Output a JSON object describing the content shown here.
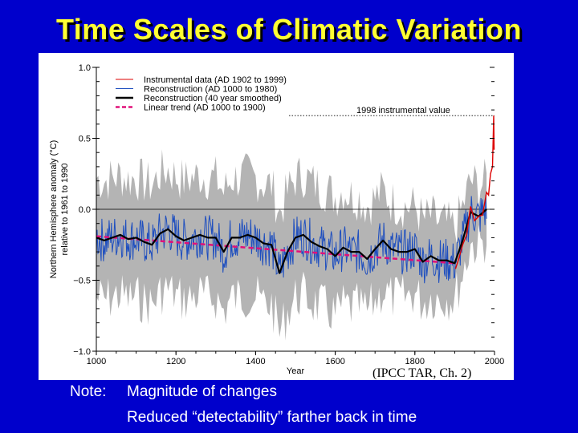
{
  "slide": {
    "title": "Time Scales of Climatic Variation",
    "source": "(IPCC TAR, Ch. 2)",
    "note_label": "Note:",
    "notes": [
      "Magnitude of changes",
      "Reduced “detectability” farther back in time"
    ]
  },
  "colors": {
    "background": "#0000cc",
    "title": "#ffff33",
    "instrumental": "#dd0000",
    "reconstruction": "#1f4fbf",
    "smoothed": "#000000",
    "trend": "#e0107a",
    "uncertainty": "#b4b4b4"
  },
  "chart_data": {
    "type": "line",
    "title": "",
    "xlabel": "Year",
    "ylabel": "Northern Hemisphere anomaly (°C) relative to 1961 to 1990",
    "xlim": [
      1000,
      2000
    ],
    "ylim": [
      -1.0,
      1.0
    ],
    "xticks": [
      "1000",
      "1200",
      "1400",
      "1600",
      "1800",
      "2000"
    ],
    "yticks": [
      "1.0",
      "0.5",
      "0.0",
      "−0.5",
      "−1.0"
    ],
    "legend": [
      {
        "label": "Instrumental data (AD 1902 to 1999)",
        "style": "thin-red"
      },
      {
        "label": "Reconstruction (AD 1000 to 1980)",
        "style": "thin-blue"
      },
      {
        "label": "Reconstruction (40 year smoothed)",
        "style": "thick-black"
      },
      {
        "label": "Linear trend (AD 1000 to 1900)",
        "style": "dashed-magenta"
      }
    ],
    "annotation": {
      "label": "1998 instrumental value",
      "value": 0.66
    },
    "series": [
      {
        "name": "Reconstruction (40 year smoothed)",
        "x": [
          1000,
          1020,
          1040,
          1060,
          1080,
          1100,
          1120,
          1140,
          1160,
          1180,
          1200,
          1220,
          1240,
          1260,
          1280,
          1300,
          1320,
          1340,
          1360,
          1380,
          1400,
          1420,
          1440,
          1460,
          1480,
          1500,
          1520,
          1540,
          1560,
          1580,
          1600,
          1620,
          1640,
          1660,
          1680,
          1700,
          1720,
          1740,
          1760,
          1780,
          1800,
          1820,
          1840,
          1860,
          1880,
          1900,
          1920,
          1940,
          1960,
          1980
        ],
        "y": [
          -0.2,
          -0.22,
          -0.2,
          -0.18,
          -0.21,
          -0.2,
          -0.23,
          -0.25,
          -0.17,
          -0.14,
          -0.19,
          -0.22,
          -0.2,
          -0.18,
          -0.2,
          -0.2,
          -0.3,
          -0.2,
          -0.2,
          -0.18,
          -0.2,
          -0.24,
          -0.25,
          -0.45,
          -0.3,
          -0.2,
          -0.18,
          -0.23,
          -0.26,
          -0.28,
          -0.33,
          -0.27,
          -0.3,
          -0.3,
          -0.35,
          -0.28,
          -0.22,
          -0.28,
          -0.3,
          -0.3,
          -0.28,
          -0.37,
          -0.33,
          -0.36,
          -0.36,
          -0.38,
          -0.22,
          -0.02,
          -0.05,
          0.0
        ]
      },
      {
        "name": "Linear trend (AD 1000 to 1900)",
        "x": [
          1000,
          1900
        ],
        "y": [
          -0.19,
          -0.38
        ]
      },
      {
        "name": "Instrumental data (AD 1902 to 1999)",
        "x": [
          1902,
          1910,
          1920,
          1930,
          1940,
          1950,
          1960,
          1970,
          1980,
          1985,
          1990,
          1995,
          1998,
          1999
        ],
        "y": [
          -0.42,
          -0.35,
          -0.25,
          -0.18,
          0.02,
          -0.08,
          -0.05,
          -0.04,
          0.12,
          0.1,
          0.25,
          0.3,
          0.66,
          0.42
        ]
      },
      {
        "name": "Reconstruction (AD 1000 to 1980)",
        "x": [
          1000,
          1980
        ],
        "y": [
          -0.2,
          0.0
        ]
      }
    ]
  }
}
